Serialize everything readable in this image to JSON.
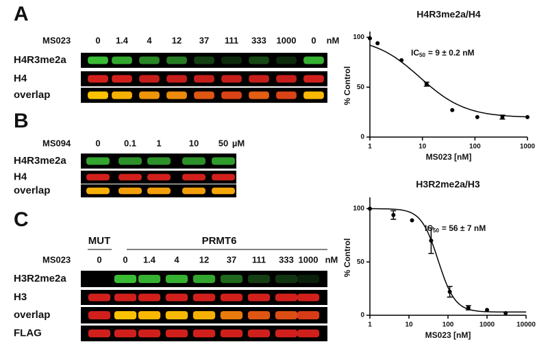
{
  "panels": [
    {
      "letter": "A",
      "compound": "MS023",
      "doses": [
        "0",
        "1.4",
        "4",
        "12",
        "37",
        "111",
        "333",
        "1000",
        "0"
      ],
      "unit": "nM",
      "rows": [
        {
          "label": "H4R3me2a",
          "color": "#3fcf3a",
          "intensities": [
            0.9,
            0.8,
            0.65,
            0.6,
            0.3,
            0.2,
            0.35,
            0.2,
            0.85
          ]
        },
        {
          "label": "H4",
          "color": "#e8231f",
          "intensities": [
            0.9,
            0.9,
            0.85,
            0.85,
            0.85,
            0.85,
            0.85,
            0.85,
            0.9
          ]
        },
        {
          "label": "overlap",
          "color": "#ffd400",
          "intensities": [
            0.9,
            0.8,
            0.65,
            0.6,
            0.3,
            0.2,
            0.35,
            0.2,
            0.85
          ]
        }
      ]
    },
    {
      "letter": "B",
      "compound": "MS094",
      "doses": [
        "0",
        "0.1",
        "1",
        "10",
        "50"
      ],
      "unit": "µM",
      "rows": [
        {
          "label": "H4R3me2a",
          "color": "#3fcf3a",
          "intensities": [
            0.8,
            0.7,
            0.7,
            0.7,
            0.75
          ]
        },
        {
          "label": "H4",
          "color": "#e8231f",
          "intensities": [
            0.9,
            0.9,
            0.9,
            0.9,
            0.9
          ]
        },
        {
          "label": "overlap",
          "color": "#ffd400",
          "intensities": [
            0.8,
            0.7,
            0.7,
            0.7,
            0.75
          ]
        }
      ]
    },
    {
      "letter": "C",
      "groups": [
        "MUT",
        "PRMT6"
      ],
      "compound": "MS023",
      "doses": [
        "0",
        "0",
        "1.4",
        "4",
        "12",
        "37",
        "111",
        "333",
        "1000"
      ],
      "unit": "nM",
      "rows": [
        {
          "label": "H3R2me2a",
          "color": "#3fcf3a",
          "intensities": [
            0,
            0.9,
            0.85,
            0.85,
            0.8,
            0.5,
            0.3,
            0.25,
            0.15
          ]
        },
        {
          "label": "H3",
          "color": "#e8231f",
          "intensities": [
            0.9,
            0.9,
            0.9,
            0.9,
            0.9,
            0.9,
            0.9,
            0.9,
            0.9
          ]
        },
        {
          "label": "overlap",
          "color": "#ffd400",
          "intensities": [
            0,
            0.9,
            0.85,
            0.85,
            0.8,
            0.5,
            0.3,
            0.25,
            0.15
          ]
        },
        {
          "label": "FLAG",
          "color": "#e8231f",
          "intensities": [
            0.9,
            0.9,
            0.9,
            0.9,
            0.9,
            0.9,
            0.9,
            0.9,
            0.9
          ]
        }
      ]
    }
  ],
  "chart_data": [
    {
      "type": "scatter",
      "title": "H4R3me2a/H4",
      "xlabel": "MS023 [nM]",
      "ylabel": "% Control",
      "log_x": true,
      "annotation": {
        "prefix": "IC",
        "sub": "50",
        "text": "= 9 ± 0.2 nM"
      },
      "x": [
        1,
        1.4,
        4,
        12,
        37,
        111,
        333,
        1000
      ],
      "values": [
        99,
        94,
        77,
        53,
        27,
        20,
        20,
        20
      ],
      "errors": [
        0,
        0,
        0,
        2,
        0,
        0,
        2,
        0
      ],
      "fit": {
        "top": 100,
        "bottom": 19.5,
        "ic50": 9,
        "hill": 1
      },
      "xlim": [
        1,
        1000
      ],
      "xticks": [
        1,
        10,
        100,
        1000
      ],
      "ylim": [
        0,
        103
      ],
      "yticks": [
        0,
        50,
        100
      ]
    },
    {
      "type": "scatter",
      "title": "H3R2me2a/H3",
      "xlabel": "MS023 [nM]",
      "ylabel": "% Control",
      "log_x": true,
      "annotation": {
        "prefix": "IC",
        "sub": "50",
        "text": "= 56 ± 7 nM"
      },
      "x": [
        1,
        4,
        12,
        37,
        111,
        333,
        1000,
        3000
      ],
      "values": [
        100,
        94,
        89,
        70,
        22,
        7,
        5,
        2
      ],
      "errors": [
        0,
        4,
        0,
        12,
        5,
        2,
        0,
        0
      ],
      "fit": {
        "top": 100,
        "bottom": 3,
        "ic50": 56,
        "hill": 2
      },
      "xlim": [
        1,
        10000
      ],
      "xticks": [
        1,
        10,
        100,
        1000,
        10000
      ],
      "ylim": [
        0,
        108
      ],
      "yticks": [
        0,
        50,
        100
      ]
    }
  ]
}
